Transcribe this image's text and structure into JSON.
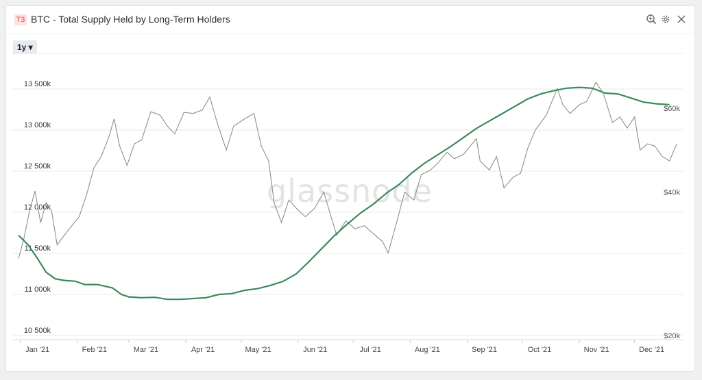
{
  "header": {
    "tier_badge": "T3",
    "title": "BTC - Total Supply Held by Long-Term Holders",
    "icons": [
      "zoom-icon",
      "gear-icon",
      "close-icon"
    ]
  },
  "controls": {
    "range_label": "1y ▾"
  },
  "watermark": "glassnode",
  "chart_data": {
    "type": "line",
    "title": "BTC - Total Supply Held by Long-Term Holders",
    "x_ticks": [
      "Jan '21",
      "Feb '21",
      "Mar '21",
      "Apr '21",
      "May '21",
      "Jun '21",
      "Jul '21",
      "Aug '21",
      "Sep '21",
      "Oct '21",
      "Nov '21",
      "Dec '21"
    ],
    "y_left": {
      "ticks": [
        "10 500k",
        "11 000k",
        "11 500k",
        "12 000k",
        "12 500k",
        "13 000k",
        "13 500k"
      ],
      "range": [
        10500,
        13500
      ]
    },
    "y_right": {
      "ticks": [
        "$20k",
        "$40k",
        "$60k"
      ],
      "scale": "log"
    },
    "grid": true,
    "colors": {
      "supply": "#3a8a5a",
      "price": "#8e8e8e"
    },
    "series": [
      {
        "axis": "left",
        "unit": "k BTC",
        "points": [
          [
            "2020-12-31",
            11720
          ],
          [
            "2021-01-05",
            11610
          ],
          [
            "2021-01-10",
            11450
          ],
          [
            "2021-01-15",
            11270
          ],
          [
            "2021-01-20",
            11190
          ],
          [
            "2021-01-25",
            11170
          ],
          [
            "2021-01-31",
            11160
          ],
          [
            "2021-02-05",
            11120
          ],
          [
            "2021-02-12",
            11120
          ],
          [
            "2021-02-20",
            11080
          ],
          [
            "2021-02-25",
            11000
          ],
          [
            "2021-03-01",
            10970
          ],
          [
            "2021-03-08",
            10960
          ],
          [
            "2021-03-15",
            10965
          ],
          [
            "2021-03-22",
            10940
          ],
          [
            "2021-03-29",
            10940
          ],
          [
            "2021-04-05",
            10950
          ],
          [
            "2021-04-12",
            10960
          ],
          [
            "2021-04-19",
            11000
          ],
          [
            "2021-04-26",
            11010
          ],
          [
            "2021-05-03",
            11050
          ],
          [
            "2021-05-10",
            11070
          ],
          [
            "2021-05-17",
            11110
          ],
          [
            "2021-05-24",
            11160
          ],
          [
            "2021-05-31",
            11250
          ],
          [
            "2021-06-07",
            11400
          ],
          [
            "2021-06-14",
            11560
          ],
          [
            "2021-06-21",
            11720
          ],
          [
            "2021-06-28",
            11860
          ],
          [
            "2021-07-05",
            11990
          ],
          [
            "2021-07-12",
            12100
          ],
          [
            "2021-07-19",
            12230
          ],
          [
            "2021-07-26",
            12340
          ],
          [
            "2021-08-02",
            12480
          ],
          [
            "2021-08-09",
            12600
          ],
          [
            "2021-08-16",
            12700
          ],
          [
            "2021-08-23",
            12800
          ],
          [
            "2021-08-30",
            12910
          ],
          [
            "2021-09-06",
            13020
          ],
          [
            "2021-09-13",
            13110
          ],
          [
            "2021-09-20",
            13200
          ],
          [
            "2021-09-27",
            13290
          ],
          [
            "2021-10-04",
            13380
          ],
          [
            "2021-10-11",
            13440
          ],
          [
            "2021-10-18",
            13480
          ],
          [
            "2021-10-25",
            13510
          ],
          [
            "2021-11-01",
            13520
          ],
          [
            "2021-11-08",
            13510
          ],
          [
            "2021-11-15",
            13450
          ],
          [
            "2021-11-22",
            13440
          ],
          [
            "2021-11-29",
            13390
          ],
          [
            "2021-12-06",
            13340
          ],
          [
            "2021-12-13",
            13320
          ],
          [
            "2021-12-20",
            13310
          ]
        ]
      },
      {
        "axis": "right",
        "unit": "USD",
        "points": [
          [
            "2020-12-31",
            29000
          ],
          [
            "2021-01-03",
            32000
          ],
          [
            "2021-01-06",
            36500
          ],
          [
            "2021-01-09",
            40200
          ],
          [
            "2021-01-12",
            34500
          ],
          [
            "2021-01-15",
            38000
          ],
          [
            "2021-01-18",
            36500
          ],
          [
            "2021-01-21",
            31000
          ],
          [
            "2021-01-25",
            32500
          ],
          [
            "2021-01-29",
            34000
          ],
          [
            "2021-02-02",
            35500
          ],
          [
            "2021-02-06",
            39500
          ],
          [
            "2021-02-10",
            45000
          ],
          [
            "2021-02-14",
            47500
          ],
          [
            "2021-02-18",
            52000
          ],
          [
            "2021-02-21",
            57000
          ],
          [
            "2021-02-24",
            50000
          ],
          [
            "2021-02-28",
            45500
          ],
          [
            "2021-03-04",
            50500
          ],
          [
            "2021-03-08",
            51500
          ],
          [
            "2021-03-13",
            59000
          ],
          [
            "2021-03-18",
            58000
          ],
          [
            "2021-03-22",
            55000
          ],
          [
            "2021-03-26",
            53000
          ],
          [
            "2021-03-31",
            58800
          ],
          [
            "2021-04-05",
            58500
          ],
          [
            "2021-04-10",
            59500
          ],
          [
            "2021-04-14",
            63300
          ],
          [
            "2021-04-18",
            56000
          ],
          [
            "2021-04-23",
            49000
          ],
          [
            "2021-04-27",
            55000
          ],
          [
            "2021-05-03",
            57000
          ],
          [
            "2021-05-08",
            58500
          ],
          [
            "2021-05-12",
            50000
          ],
          [
            "2021-05-16",
            46500
          ],
          [
            "2021-05-19",
            38000
          ],
          [
            "2021-05-23",
            34500
          ],
          [
            "2021-05-27",
            38500
          ],
          [
            "2021-05-31",
            37000
          ],
          [
            "2021-06-05",
            35500
          ],
          [
            "2021-06-10",
            37000
          ],
          [
            "2021-06-15",
            40000
          ],
          [
            "2021-06-19",
            35500
          ],
          [
            "2021-06-22",
            32500
          ],
          [
            "2021-06-27",
            34800
          ],
          [
            "2021-07-02",
            33500
          ],
          [
            "2021-07-07",
            34000
          ],
          [
            "2021-07-12",
            32700
          ],
          [
            "2021-07-17",
            31500
          ],
          [
            "2021-07-20",
            29800
          ],
          [
            "2021-07-25",
            35000
          ],
          [
            "2021-07-29",
            40000
          ],
          [
            "2021-08-03",
            38500
          ],
          [
            "2021-08-07",
            43500
          ],
          [
            "2021-08-12",
            44500
          ],
          [
            "2021-08-16",
            46000
          ],
          [
            "2021-08-21",
            48500
          ],
          [
            "2021-08-25",
            47000
          ],
          [
            "2021-08-30",
            48000
          ],
          [
            "2021-09-06",
            51800
          ],
          [
            "2021-09-08",
            46500
          ],
          [
            "2021-09-13",
            44500
          ],
          [
            "2021-09-17",
            47500
          ],
          [
            "2021-09-21",
            40800
          ],
          [
            "2021-09-26",
            43000
          ],
          [
            "2021-09-30",
            43800
          ],
          [
            "2021-10-04",
            49500
          ],
          [
            "2021-10-08",
            54000
          ],
          [
            "2021-10-14",
            58000
          ],
          [
            "2021-10-20",
            66000
          ],
          [
            "2021-10-23",
            61000
          ],
          [
            "2021-10-27",
            58500
          ],
          [
            "2021-11-01",
            61000
          ],
          [
            "2021-11-05",
            62000
          ],
          [
            "2021-11-10",
            68000
          ],
          [
            "2021-11-14",
            64500
          ],
          [
            "2021-11-19",
            56000
          ],
          [
            "2021-11-23",
            57500
          ],
          [
            "2021-11-27",
            54500
          ],
          [
            "2021-12-01",
            57500
          ],
          [
            "2021-12-04",
            49000
          ],
          [
            "2021-12-08",
            50500
          ],
          [
            "2021-12-12",
            50000
          ],
          [
            "2021-12-16",
            47500
          ],
          [
            "2021-12-20",
            46500
          ],
          [
            "2021-12-24",
            50500
          ]
        ]
      }
    ]
  }
}
